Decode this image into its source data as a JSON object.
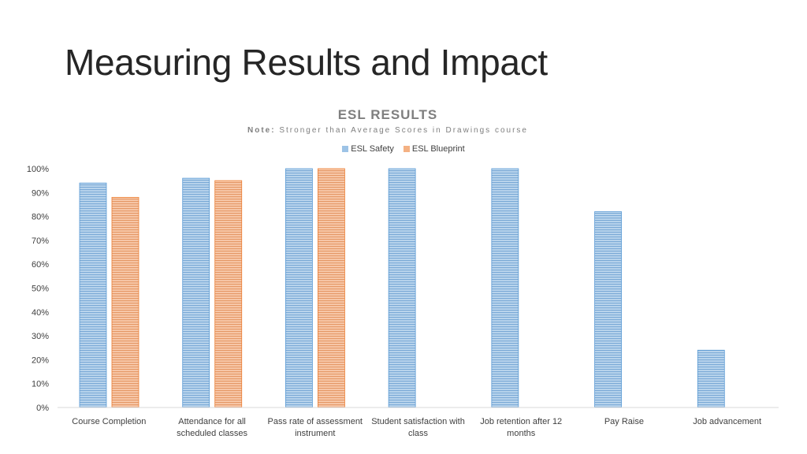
{
  "slide": {
    "title": "Measuring Results and Impact"
  },
  "chart_data": {
    "type": "bar",
    "title": "ESL RESULTS",
    "subtitle_prefix": "Note:",
    "subtitle_text": "Stronger than Average Scores in Drawings course",
    "legend_position": "top",
    "grid": false,
    "ylim": [
      0,
      100
    ],
    "yticks": [
      "0%",
      "10%",
      "20%",
      "30%",
      "40%",
      "50%",
      "60%",
      "70%",
      "80%",
      "90%",
      "100%"
    ],
    "categories": [
      [
        "Course Completion"
      ],
      [
        "Attendance for all",
        "scheduled classes"
      ],
      [
        "Pass rate of assessment",
        "instrument"
      ],
      [
        "Student satisfaction with",
        "class"
      ],
      [
        "Job retention after 12",
        "months"
      ],
      [
        "Pay Raise"
      ],
      [
        "Job advancement"
      ]
    ],
    "series": [
      {
        "name": "ESL Safety",
        "color": "#9dc3e6",
        "values": [
          94,
          96,
          100,
          100,
          100,
          82,
          24
        ]
      },
      {
        "name": "ESL Blueprint",
        "color": "#f4b183",
        "values": [
          88,
          95,
          100,
          null,
          null,
          null,
          null
        ]
      }
    ]
  }
}
